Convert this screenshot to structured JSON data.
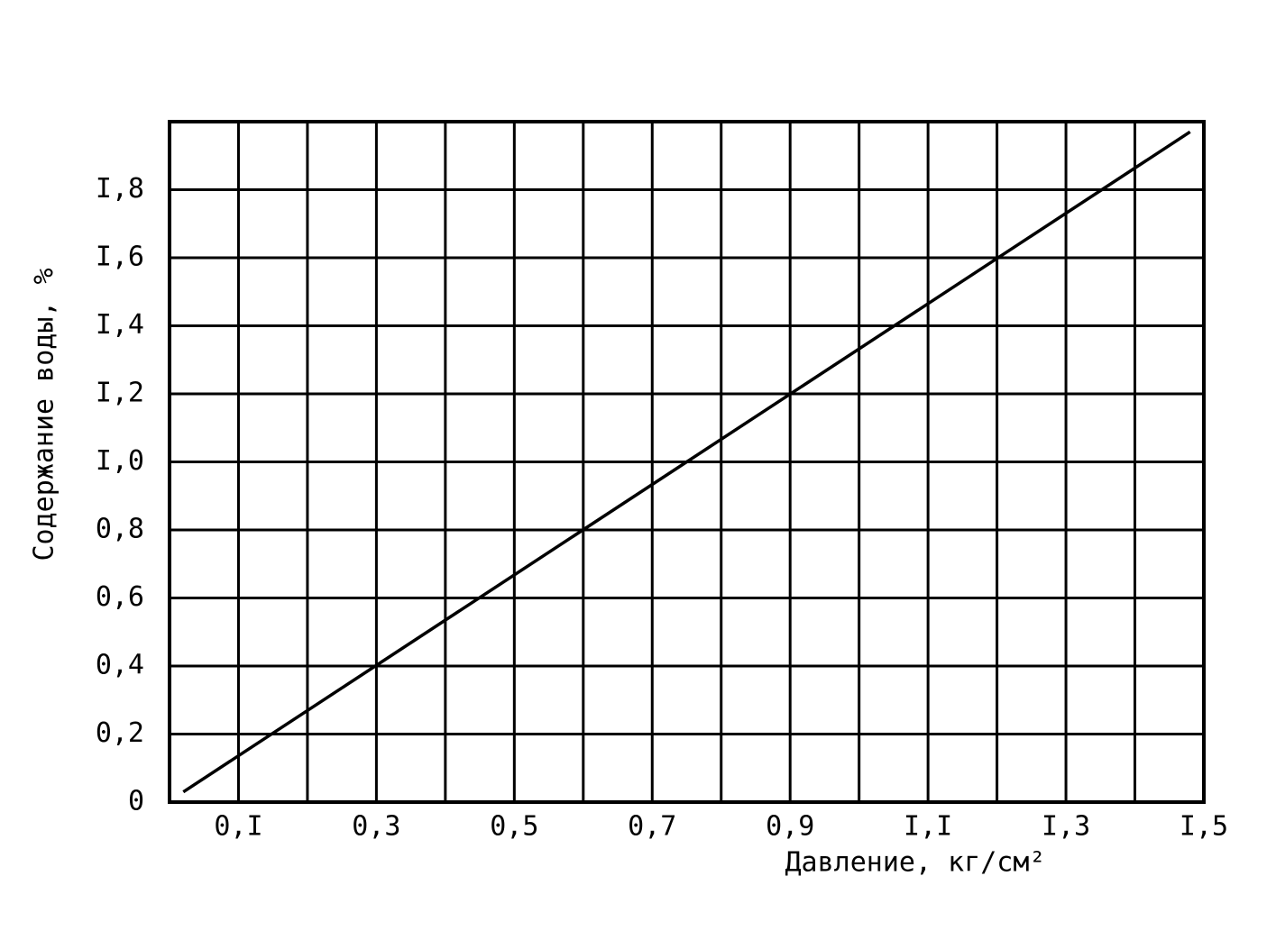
{
  "chart_data": {
    "type": "line",
    "x_label": "Давление, кг/см²",
    "y_label": "Содержание воды, %",
    "xlim": [
      0,
      1.5
    ],
    "ylim": [
      0,
      2.0
    ],
    "xticks": [
      {
        "value": 0.1,
        "label": "0,I"
      },
      {
        "value": 0.3,
        "label": "0,3"
      },
      {
        "value": 0.5,
        "label": "0,5"
      },
      {
        "value": 0.7,
        "label": "0,7"
      },
      {
        "value": 0.9,
        "label": "0,9"
      },
      {
        "value": 1.1,
        "label": "I,I"
      },
      {
        "value": 1.3,
        "label": "I,3"
      },
      {
        "value": 1.5,
        "label": "I,5"
      }
    ],
    "x_minor_ticks": [
      0,
      0.2,
      0.4,
      0.6,
      0.8,
      1.0,
      1.2,
      1.4
    ],
    "yticks": [
      0,
      {
        "value": 0.2,
        "label": "0,2"
      },
      {
        "value": 0.4,
        "label": "0,4"
      },
      {
        "value": 0.6,
        "label": "0,6"
      },
      {
        "value": 0.8,
        "label": "0,8"
      },
      {
        "value": 1.0,
        "label": "I,0"
      },
      {
        "value": 1.2,
        "label": "I,2"
      },
      {
        "value": 1.4,
        "label": "I,4"
      },
      {
        "value": 1.6,
        "label": "I,6"
      },
      {
        "value": 1.8,
        "label": "I,8"
      }
    ],
    "grid": true,
    "x": [
      0.02,
      1.48
    ],
    "series": [
      {
        "color": "#000000",
        "values": [
          0.03,
          1.97
        ]
      }
    ]
  }
}
